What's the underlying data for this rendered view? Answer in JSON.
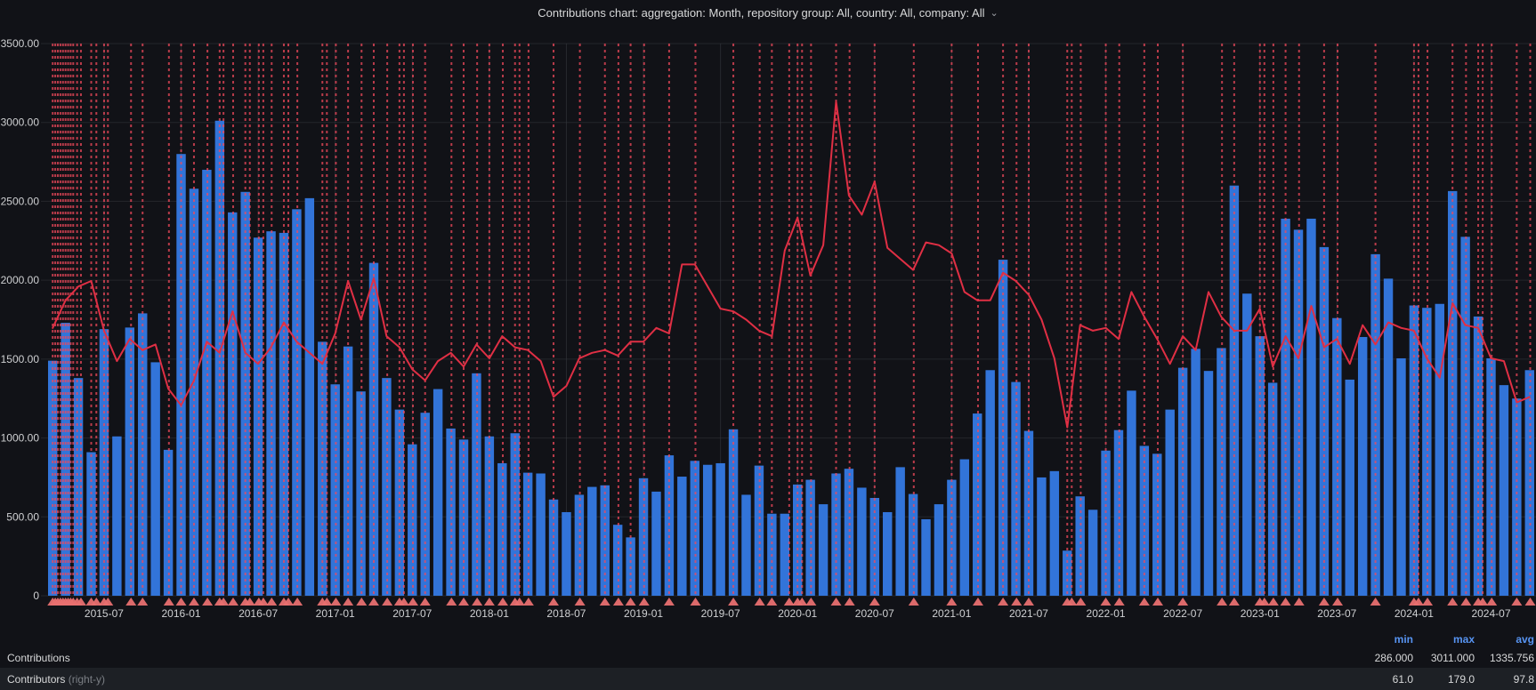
{
  "header": {
    "title": "Contributions chart: aggregation: Month, repository group: All, country: All, company: All",
    "chevron": "⌄"
  },
  "colors": {
    "background": "#111217",
    "bar": "#3274d9",
    "line": "#e02f44",
    "annotation": "#f2495c",
    "annotation_marker": "#e87070",
    "grid_h": "#24262b",
    "grid_v": "#383b41",
    "axis_text": "#cfd0d2",
    "legend_header": "#5794f2",
    "legend_row_alt": "#1d2025"
  },
  "chart_data": {
    "type": "bar",
    "title": "Contributions chart",
    "xlabel": "",
    "ylabel": "",
    "x_start_month": "2015-03",
    "months": [
      "2015-03",
      "2015-04",
      "2015-05",
      "2015-06",
      "2015-07",
      "2015-08",
      "2015-09",
      "2015-10",
      "2015-11",
      "2015-12",
      "2016-01",
      "2016-02",
      "2016-03",
      "2016-04",
      "2016-05",
      "2016-06",
      "2016-07",
      "2016-08",
      "2016-09",
      "2016-10",
      "2016-11",
      "2016-12",
      "2017-01",
      "2017-02",
      "2017-03",
      "2017-04",
      "2017-05",
      "2017-06",
      "2017-07",
      "2017-08",
      "2017-09",
      "2017-10",
      "2017-11",
      "2017-12",
      "2018-01",
      "2018-02",
      "2018-03",
      "2018-04",
      "2018-05",
      "2018-06",
      "2018-07",
      "2018-08",
      "2018-09",
      "2018-10",
      "2018-11",
      "2018-12",
      "2019-01",
      "2019-02",
      "2019-03",
      "2019-04",
      "2019-05",
      "2019-06",
      "2019-07",
      "2019-08",
      "2019-09",
      "2019-10",
      "2019-11",
      "2019-12",
      "2020-01",
      "2020-02",
      "2020-03",
      "2020-04",
      "2020-05",
      "2020-06",
      "2020-07",
      "2020-08",
      "2020-09",
      "2020-10",
      "2020-11",
      "2020-12",
      "2021-01",
      "2021-02",
      "2021-03",
      "2021-04",
      "2021-05",
      "2021-06",
      "2021-07",
      "2021-08",
      "2021-09",
      "2021-10",
      "2021-11",
      "2021-12",
      "2022-01",
      "2022-02",
      "2022-03",
      "2022-04",
      "2022-05",
      "2022-06",
      "2022-07",
      "2022-08",
      "2022-09",
      "2022-10",
      "2022-11",
      "2022-12",
      "2023-01",
      "2023-02",
      "2023-03",
      "2023-04",
      "2023-05",
      "2023-06",
      "2023-07",
      "2023-08",
      "2023-09",
      "2023-10",
      "2023-11",
      "2023-12",
      "2024-01",
      "2024-02",
      "2024-03",
      "2024-04",
      "2024-05",
      "2024-06",
      "2024-07",
      "2024-08",
      "2024-09",
      "2024-10"
    ],
    "series": [
      {
        "name": "Contributions",
        "type": "bar",
        "axis": "left",
        "color": "#3274d9",
        "values": [
          1490,
          1730,
          1380,
          910,
          1690,
          1010,
          1700,
          1790,
          1480,
          925,
          2800,
          2580,
          2700,
          3011,
          2430,
          2560,
          2270,
          2310,
          2300,
          2450,
          2520,
          1610,
          1340,
          1580,
          1295,
          2110,
          1380,
          1180,
          960,
          1160,
          1310,
          1060,
          990,
          1410,
          1010,
          840,
          1030,
          780,
          775,
          610,
          530,
          640,
          690,
          700,
          450,
          370,
          745,
          660,
          890,
          755,
          855,
          830,
          840,
          1055,
          640,
          825,
          520,
          520,
          705,
          735,
          580,
          775,
          805,
          685,
          620,
          530,
          815,
          645,
          485,
          580,
          735,
          865,
          1155,
          1430,
          2130,
          1355,
          1045,
          750,
          790,
          286,
          630,
          545,
          920,
          1050,
          1300,
          950,
          900,
          1180,
          1445,
          1565,
          1425,
          1570,
          2600,
          1915,
          1645,
          1350,
          2390,
          2320,
          2390,
          2210,
          1760,
          1370,
          1640,
          2165,
          2010,
          1505,
          1840,
          1825,
          1850,
          2565,
          2275,
          1770,
          1505,
          1335,
          1250,
          1430
        ]
      },
      {
        "name": "Contributors",
        "type": "line",
        "axis": "right",
        "color": "#e02f44",
        "values": [
          97,
          107,
          112,
          114,
          96,
          85,
          93,
          89,
          91,
          75,
          69,
          78,
          92,
          88,
          103,
          88,
          84,
          90,
          99,
          92,
          88,
          84,
          95,
          114,
          100,
          115,
          94,
          90,
          82,
          78,
          85,
          88,
          83,
          91,
          86,
          94,
          90,
          89,
          85,
          72,
          76,
          86,
          88,
          89,
          87,
          92,
          92,
          97,
          95,
          120,
          120,
          112,
          104,
          103,
          100,
          96,
          94,
          125,
          137,
          116,
          127,
          179,
          145,
          138,
          150,
          126,
          122,
          118,
          128,
          127,
          124,
          110,
          107,
          107,
          117,
          114,
          109,
          100,
          86,
          61,
          98,
          96,
          97,
          93,
          110,
          101,
          93,
          84,
          94,
          89,
          110,
          101,
          96,
          96,
          104,
          83,
          94,
          86,
          105,
          90,
          93,
          84,
          98,
          91,
          99,
          97,
          96,
          86,
          79,
          106,
          98,
          97,
          86,
          85,
          70,
          72
        ]
      }
    ],
    "y_left": {
      "min": 0,
      "max": 3500,
      "tick_step": 500,
      "tick_labels": [
        "3500.00",
        "3000.00",
        "2500.00",
        "2000.00",
        "1500.00",
        "1000.00",
        "500.00",
        "0"
      ]
    },
    "y_right": {
      "min": 0,
      "max": 200,
      "labels_visible": false
    },
    "x_ticks": {
      "indices": [
        4,
        10,
        16,
        22,
        28,
        34,
        40,
        46,
        52,
        58,
        64,
        70,
        76,
        82,
        88,
        94,
        100,
        106,
        112
      ],
      "labels": [
        "2015-07",
        "2016-01",
        "2016-07",
        "2017-01",
        "2017-07",
        "2018-01",
        "2018-07",
        "2019-01",
        "2019-07",
        "2020-01",
        "2020-07",
        "2021-01",
        "2021-07",
        "2022-01",
        "2022-07",
        "2023-01",
        "2023-07",
        "2024-01",
        "2024-07"
      ]
    },
    "annotations": {
      "style": "dashed-vertical-line-with-triangle-marker",
      "positions": [
        0,
        0.2,
        0.4,
        0.6,
        0.8,
        1,
        1.2,
        1.4,
        1.6,
        1.9,
        2.2,
        3,
        3.4,
        4,
        4.3,
        6.1,
        7,
        9.05,
        10,
        11,
        12.05,
        13,
        13.3,
        14.05,
        15,
        15.35,
        16.05,
        16.4,
        17.05,
        18,
        18.35,
        19.05,
        21,
        21.35,
        22.05,
        23,
        24.05,
        25,
        26.05,
        27,
        27.35,
        28.05,
        29,
        31.05,
        32,
        33.05,
        34,
        35.05,
        36,
        36.35,
        37.05,
        39,
        41.05,
        43,
        44.05,
        45,
        46.05,
        48,
        50.05,
        53,
        55.05,
        56,
        57.35,
        58,
        58.35,
        59.05,
        61,
        62.05,
        64,
        67.05,
        70,
        72.05,
        74,
        75.05,
        76,
        79,
        79.35,
        80.05,
        82,
        83.05,
        85,
        86.05,
        88,
        91.05,
        92,
        94,
        94.35,
        95.05,
        96,
        97.05,
        99,
        100.05,
        103,
        106,
        106.35,
        107.05,
        109,
        110.05,
        111,
        111.35,
        112.05,
        114,
        115.05
      ]
    },
    "grid": true,
    "legend_position": "bottom"
  },
  "legend": {
    "headers": {
      "min": "min",
      "max": "max",
      "avg": "avg"
    },
    "rows": [
      {
        "label": "Contributions",
        "suffix": "",
        "min": "286.000",
        "max": "3011.000",
        "avg": "1335.756"
      },
      {
        "label": "Contributors",
        "suffix": "(right-y)",
        "min": "61.0",
        "max": "179.0",
        "avg": "97.8"
      }
    ]
  }
}
